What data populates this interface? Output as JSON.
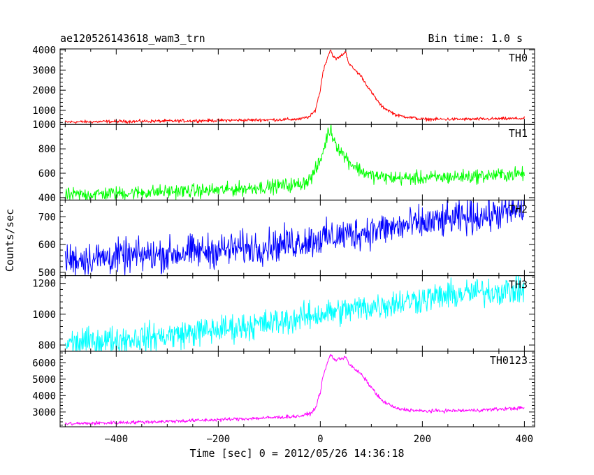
{
  "chart_data": {
    "type": "line",
    "title": "ae120526143618_wam3_trn",
    "bin_time_label": "Bin time: 1.0 s",
    "xlabel": "Time [sec] 0 = 2012/05/26 14:36:18",
    "ylabel": "Counts/sec",
    "xlim": [
      -510,
      420
    ],
    "xticks": [
      -400,
      -200,
      0,
      200,
      400
    ],
    "xtick_labels": [
      "−400",
      "−200",
      "0",
      "200",
      "400"
    ],
    "panels": [
      {
        "name": "TH0",
        "color": "#ff0000",
        "ylim": [
          300,
          4050
        ],
        "yticks": [
          1000,
          2000,
          3000,
          4000
        ],
        "ytick_labels": [
          "1000",
          "2000",
          "3000",
          "4000"
        ],
        "noise": 40,
        "x": [
          -500,
          -400,
          -300,
          -200,
          -100,
          -40,
          -20,
          -10,
          0,
          5,
          10,
          15,
          20,
          25,
          30,
          35,
          40,
          45,
          50,
          55,
          60,
          80,
          100,
          120,
          150,
          200,
          300,
          400
        ],
        "y": [
          420,
          450,
          470,
          500,
          530,
          560,
          700,
          1000,
          2000,
          2900,
          3300,
          3700,
          4000,
          3700,
          3550,
          3600,
          3700,
          3800,
          3900,
          3400,
          3200,
          2700,
          1900,
          1200,
          750,
          560,
          560,
          600
        ]
      },
      {
        "name": "TH1",
        "color": "#00ff00",
        "ylim": [
          380,
          1000
        ],
        "yticks": [
          400,
          600,
          800,
          1000
        ],
        "ytick_labels": [
          "400",
          "600",
          "800",
          "1000"
        ],
        "noise": 28,
        "x": [
          -500,
          -400,
          -300,
          -200,
          -100,
          -40,
          -20,
          -10,
          0,
          10,
          15,
          20,
          25,
          30,
          40,
          50,
          60,
          80,
          100,
          120,
          150,
          200,
          300,
          400
        ],
        "y": [
          420,
          435,
          450,
          460,
          490,
          510,
          550,
          620,
          700,
          850,
          930,
          960,
          900,
          850,
          780,
          730,
          680,
          620,
          580,
          570,
          560,
          560,
          575,
          595
        ]
      },
      {
        "name": "TH2",
        "color": "#0000ff",
        "ylim": [
          488,
          760
        ],
        "yticks": [
          500,
          600,
          700
        ],
        "ytick_labels": [
          "500",
          "600",
          "700"
        ],
        "noise": 30,
        "x": [
          -500,
          -300,
          -100,
          0,
          100,
          200,
          300,
          400
        ],
        "y": [
          545,
          565,
          595,
          620,
          650,
          675,
          700,
          725
        ]
      },
      {
        "name": "TH3",
        "color": "#00ffff",
        "ylim": [
          760,
          1250
        ],
        "yticks": [
          800,
          1000,
          1200
        ],
        "ytick_labels": [
          "800",
          "1000",
          "1200"
        ],
        "noise": 45,
        "x": [
          -500,
          -300,
          -100,
          0,
          100,
          200,
          300,
          400
        ],
        "y": [
          810,
          860,
          940,
          1000,
          1050,
          1100,
          1140,
          1160
        ]
      },
      {
        "name": "TH0123",
        "color": "#ff00ff",
        "ylim": [
          2100,
          6700
        ],
        "yticks": [
          3000,
          4000,
          5000,
          6000
        ],
        "ytick_labels": [
          "3000",
          "4000",
          "5000",
          "6000"
        ],
        "noise": 55,
        "x": [
          -500,
          -400,
          -300,
          -200,
          -100,
          -40,
          -20,
          -10,
          0,
          5,
          10,
          15,
          20,
          25,
          30,
          35,
          40,
          45,
          50,
          55,
          60,
          80,
          100,
          120,
          150,
          200,
          300,
          400
        ],
        "y": [
          2280,
          2350,
          2430,
          2530,
          2650,
          2750,
          2900,
          3200,
          4200,
          5100,
          5600,
          6100,
          6500,
          6300,
          6150,
          6200,
          6250,
          6300,
          6400,
          6000,
          5800,
          5300,
          4500,
          3700,
          3200,
          3050,
          3100,
          3250
        ]
      }
    ]
  }
}
